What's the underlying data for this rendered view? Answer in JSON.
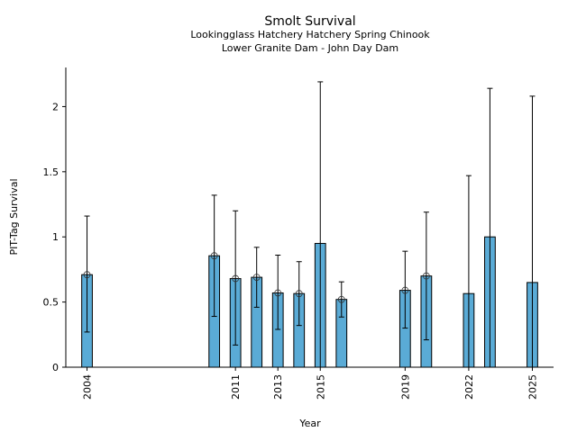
{
  "chart_data": {
    "type": "bar",
    "title": "Smolt Survival",
    "subtitle_lines": [
      "Lookingglass Hatchery Hatchery Spring Chinook",
      "Lower Granite Dam - John Day Dam"
    ],
    "xlabel": "Year",
    "ylabel": "PIT-Tag Survival",
    "xlim": [
      2003,
      2026
    ],
    "ylim": [
      0,
      2.3
    ],
    "xticks": [
      2004,
      2011,
      2013,
      2015,
      2019,
      2022,
      2025
    ],
    "yticks": [
      0,
      0.5,
      1,
      1.5,
      2
    ],
    "ytick_labels": [
      "0",
      "0.5",
      "1",
      "1.5",
      "2"
    ],
    "grid": false,
    "bar_color": "#5aabd6",
    "series": [
      {
        "name": "PIT-Tag Survival",
        "points": [
          {
            "year": 2004,
            "value": 0.71,
            "err_low": 0.27,
            "err_high": 1.16,
            "marker": true
          },
          {
            "year": 2010,
            "value": 0.855,
            "err_low": 0.39,
            "err_high": 1.32,
            "marker": true
          },
          {
            "year": 2011,
            "value": 0.68,
            "err_low": 0.17,
            "err_high": 1.2,
            "marker": true
          },
          {
            "year": 2012,
            "value": 0.69,
            "err_low": 0.46,
            "err_high": 0.92,
            "marker": true
          },
          {
            "year": 2013,
            "value": 0.57,
            "err_low": 0.29,
            "err_high": 0.86,
            "marker": true
          },
          {
            "year": 2014,
            "value": 0.565,
            "err_low": 0.32,
            "err_high": 0.81,
            "marker": true
          },
          {
            "year": 2015,
            "value": 0.95,
            "err_low": 0.0,
            "err_high": 2.19,
            "marker": false
          },
          {
            "year": 2016,
            "value": 0.52,
            "err_low": 0.385,
            "err_high": 0.655,
            "marker": true
          },
          {
            "year": 2019,
            "value": 0.59,
            "err_low": 0.3,
            "err_high": 0.89,
            "marker": true
          },
          {
            "year": 2020,
            "value": 0.7,
            "err_low": 0.21,
            "err_high": 1.19,
            "marker": true
          },
          {
            "year": 2022,
            "value": 0.565,
            "err_low": 0.0,
            "err_high": 1.47,
            "marker": false
          },
          {
            "year": 2023,
            "value": 1.0,
            "err_low": 0.0,
            "err_high": 2.14,
            "marker": false
          },
          {
            "year": 2025,
            "value": 0.65,
            "err_low": 0.0,
            "err_high": 2.08,
            "marker": false
          }
        ]
      }
    ]
  }
}
